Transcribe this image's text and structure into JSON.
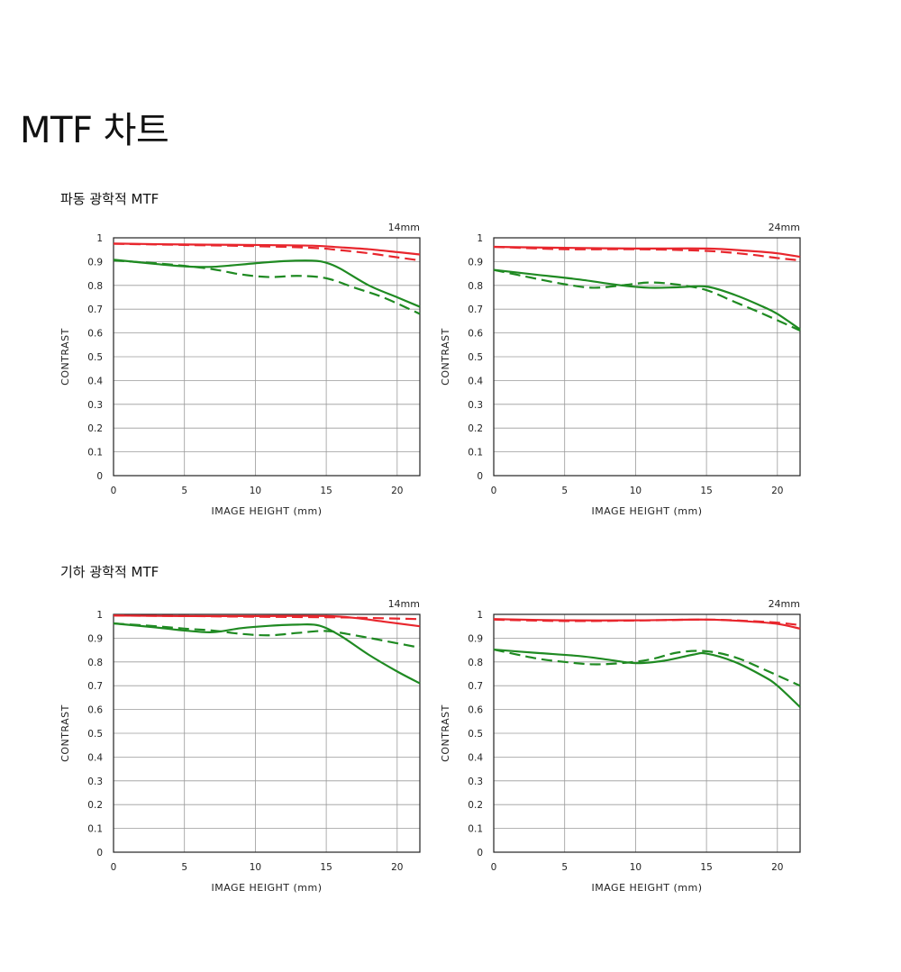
{
  "page": {
    "title": "MTF 차트"
  },
  "sections": [
    {
      "title": "파동 광학적 MTF"
    },
    {
      "title": "기하 광학적 MTF"
    }
  ],
  "colors": {
    "red": "#e8262d",
    "green": "#1f8a22",
    "grid": "#9a9a9a",
    "frame": "#222222"
  },
  "chart_data": [
    {
      "type": "line",
      "section": "파동 광학적 MTF",
      "focal": "14mm",
      "xlabel": "IMAGE HEIGHT (mm)",
      "ylabel": "CONTRAST",
      "xlim": [
        0,
        21.6
      ],
      "ylim": [
        0,
        1
      ],
      "xticks": [
        0,
        5,
        10,
        15,
        20
      ],
      "yticks": [
        0,
        0.1,
        0.2,
        0.3,
        0.4,
        0.5,
        0.6,
        0.7,
        0.8,
        0.9,
        1
      ],
      "grid": true,
      "series": [
        {
          "color": "red",
          "dash": false,
          "x": [
            0,
            5,
            10,
            14,
            16,
            18,
            20,
            21.6
          ],
          "y": [
            0.976,
            0.972,
            0.97,
            0.967,
            0.96,
            0.952,
            0.94,
            0.93
          ]
        },
        {
          "color": "red",
          "dash": true,
          "x": [
            0,
            5,
            10,
            14,
            16,
            18,
            20,
            21.6
          ],
          "y": [
            0.975,
            0.97,
            0.965,
            0.958,
            0.948,
            0.935,
            0.918,
            0.905
          ]
        },
        {
          "color": "green",
          "dash": false,
          "x": [
            0,
            3,
            5,
            7,
            10,
            12,
            14,
            15,
            16,
            18,
            20,
            21.6
          ],
          "y": [
            0.908,
            0.89,
            0.88,
            0.878,
            0.893,
            0.902,
            0.904,
            0.895,
            0.87,
            0.8,
            0.75,
            0.71
          ]
        },
        {
          "color": "green",
          "dash": true,
          "x": [
            0,
            3,
            5,
            7,
            9,
            11,
            13,
            15,
            17,
            19,
            21.6
          ],
          "y": [
            0.905,
            0.893,
            0.882,
            0.868,
            0.846,
            0.835,
            0.84,
            0.83,
            0.79,
            0.75,
            0.68
          ]
        }
      ]
    },
    {
      "type": "line",
      "section": "파동 광학적 MTF",
      "focal": "24mm",
      "xlabel": "IMAGE HEIGHT (mm)",
      "ylabel": "CONTRAST",
      "xlim": [
        0,
        21.6
      ],
      "ylim": [
        0,
        1
      ],
      "xticks": [
        0,
        5,
        10,
        15,
        20
      ],
      "yticks": [
        0,
        0.1,
        0.2,
        0.3,
        0.4,
        0.5,
        0.6,
        0.7,
        0.8,
        0.9,
        1
      ],
      "grid": true,
      "series": [
        {
          "color": "red",
          "dash": false,
          "x": [
            0,
            5,
            10,
            15,
            18,
            20,
            21.6
          ],
          "y": [
            0.962,
            0.958,
            0.955,
            0.955,
            0.945,
            0.935,
            0.92
          ]
        },
        {
          "color": "red",
          "dash": true,
          "x": [
            0,
            5,
            10,
            15,
            18,
            20,
            21.6
          ],
          "y": [
            0.962,
            0.952,
            0.952,
            0.945,
            0.93,
            0.915,
            0.905
          ]
        },
        {
          "color": "green",
          "dash": false,
          "x": [
            0,
            3,
            6,
            9,
            11,
            13,
            15,
            17,
            19,
            20,
            21.6
          ],
          "y": [
            0.865,
            0.845,
            0.825,
            0.8,
            0.79,
            0.792,
            0.795,
            0.76,
            0.71,
            0.68,
            0.615
          ]
        },
        {
          "color": "green",
          "dash": true,
          "x": [
            0,
            3,
            5,
            7,
            9,
            11,
            13,
            15,
            17,
            19,
            21.6
          ],
          "y": [
            0.865,
            0.828,
            0.805,
            0.79,
            0.8,
            0.812,
            0.803,
            0.78,
            0.73,
            0.68,
            0.61
          ]
        }
      ]
    },
    {
      "type": "line",
      "section": "기하 광학적 MTF",
      "focal": "14mm",
      "xlabel": "IMAGE HEIGHT (mm)",
      "ylabel": "CONTRAST",
      "xlim": [
        0,
        21.6
      ],
      "ylim": [
        0,
        1
      ],
      "xticks": [
        0,
        5,
        10,
        15,
        20
      ],
      "yticks": [
        0,
        0.1,
        0.2,
        0.3,
        0.4,
        0.5,
        0.6,
        0.7,
        0.8,
        0.9,
        1
      ],
      "grid": true,
      "series": [
        {
          "color": "red",
          "dash": false,
          "x": [
            0,
            5,
            10,
            15,
            17,
            19,
            21.6
          ],
          "y": [
            0.995,
            0.993,
            0.993,
            0.993,
            0.985,
            0.97,
            0.95
          ]
        },
        {
          "color": "red",
          "dash": true,
          "x": [
            0,
            5,
            10,
            15,
            18,
            21.6
          ],
          "y": [
            0.995,
            0.993,
            0.99,
            0.988,
            0.985,
            0.98
          ]
        },
        {
          "color": "green",
          "dash": false,
          "x": [
            0,
            3,
            5,
            7,
            9,
            11,
            13,
            14.5,
            16,
            18,
            20,
            21.6
          ],
          "y": [
            0.962,
            0.945,
            0.932,
            0.925,
            0.942,
            0.952,
            0.957,
            0.953,
            0.91,
            0.83,
            0.76,
            0.71
          ]
        },
        {
          "color": "green",
          "dash": true,
          "x": [
            0,
            3,
            5,
            7,
            9,
            11,
            13,
            15,
            17,
            19,
            21.6
          ],
          "y": [
            0.962,
            0.95,
            0.94,
            0.932,
            0.918,
            0.912,
            0.922,
            0.93,
            0.912,
            0.89,
            0.86
          ]
        }
      ]
    },
    {
      "type": "line",
      "section": "기하 광학적 MTF",
      "focal": "24mm",
      "xlabel": "IMAGE HEIGHT (mm)",
      "ylabel": "CONTRAST",
      "xlim": [
        0,
        21.6
      ],
      "ylim": [
        0,
        1
      ],
      "xticks": [
        0,
        5,
        10,
        15,
        20
      ],
      "yticks": [
        0,
        0.1,
        0.2,
        0.3,
        0.4,
        0.5,
        0.6,
        0.7,
        0.8,
        0.9,
        1
      ],
      "grid": true,
      "series": [
        {
          "color": "red",
          "dash": false,
          "x": [
            0,
            5,
            10,
            15,
            18,
            20,
            21.6
          ],
          "y": [
            0.98,
            0.975,
            0.975,
            0.978,
            0.97,
            0.96,
            0.94
          ]
        },
        {
          "color": "red",
          "dash": true,
          "x": [
            0,
            5,
            10,
            15,
            18,
            20,
            21.6
          ],
          "y": [
            0.978,
            0.972,
            0.974,
            0.978,
            0.972,
            0.965,
            0.955
          ]
        },
        {
          "color": "green",
          "dash": false,
          "x": [
            0,
            3,
            6,
            8,
            10,
            12,
            14,
            15,
            17,
            19,
            20,
            21.6
          ],
          "y": [
            0.852,
            0.838,
            0.825,
            0.81,
            0.795,
            0.805,
            0.83,
            0.835,
            0.8,
            0.74,
            0.7,
            0.61
          ]
        },
        {
          "color": "green",
          "dash": true,
          "x": [
            0,
            3,
            5,
            7,
            9,
            11,
            13,
            15,
            17,
            19,
            21.6
          ],
          "y": [
            0.852,
            0.815,
            0.8,
            0.79,
            0.795,
            0.81,
            0.84,
            0.845,
            0.82,
            0.77,
            0.7
          ]
        }
      ]
    }
  ]
}
